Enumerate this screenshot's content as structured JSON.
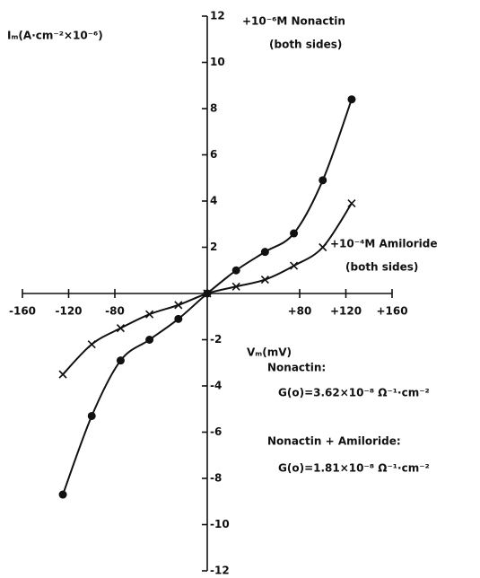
{
  "chart_data": {
    "type": "line",
    "y_label": "Iₘ(A·cm⁻²×10⁻⁶)",
    "x_label": "Vₘ(mV)",
    "x": [
      -125,
      -100,
      -75,
      -50,
      -25,
      0,
      25,
      50,
      75,
      100,
      125
    ],
    "series": [
      {
        "name": "+10⁻⁶M Nonactin",
        "name_note": "(both sides)",
        "color": "#111111",
        "marker": "dot",
        "values": [
          -8.7,
          -5.3,
          -2.9,
          -2.0,
          -1.1,
          0,
          1.0,
          1.8,
          2.6,
          4.9,
          8.4
        ]
      },
      {
        "name": "+10⁻⁴M Amiloride",
        "name_note": "(both sides)",
        "color": "#111111",
        "marker": "cross",
        "values": [
          -3.5,
          -2.2,
          -1.5,
          -0.9,
          -0.5,
          0,
          0.3,
          0.6,
          1.2,
          2.0,
          3.9
        ]
      }
    ],
    "xlim": [
      -160,
      160
    ],
    "ylim": [
      -12,
      12
    ],
    "xticks": [
      -160,
      -120,
      -80,
      {
        "value": 80,
        "label": "+80"
      },
      {
        "value": 120,
        "label": "+120"
      },
      {
        "value": 160,
        "label": "+160"
      }
    ],
    "yticks": [
      12,
      10,
      8,
      6,
      4,
      2,
      -2,
      -4,
      -6,
      -8,
      -10,
      -12
    ],
    "annotations": [
      "Nonactin:",
      "G(o)=3.62×10⁻⁸ Ω⁻¹·cm⁻²",
      "Nonactin + Amiloride:",
      "G(o)=1.81×10⁻⁸ Ω⁻¹·cm⁻²"
    ]
  }
}
